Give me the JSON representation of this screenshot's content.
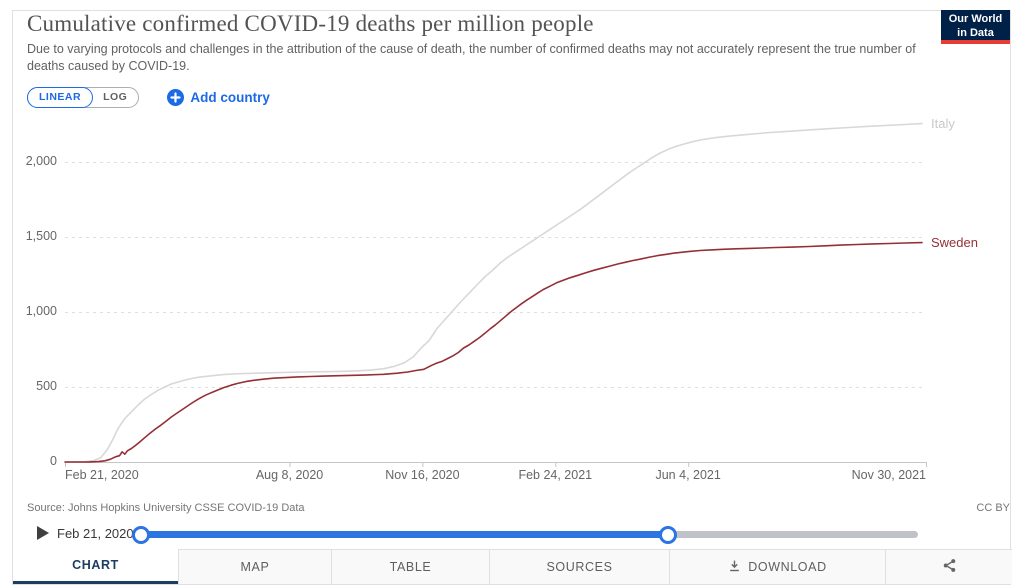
{
  "header": {
    "title": "Cumulative confirmed COVID-19 deaths per million people",
    "subtitle": "Due to varying protocols and challenges in the attribution of the cause of death, the number of confirmed deaths may not accurately represent the true number of deaths caused by COVID-19.",
    "logo": {
      "line1": "Our World",
      "line2": "in Data"
    }
  },
  "controls": {
    "scale_options": [
      {
        "label": "LINEAR",
        "active": true
      },
      {
        "label": "LOG",
        "active": false
      }
    ],
    "add_country_label": "Add country"
  },
  "chart_data": {
    "type": "line",
    "title": "Cumulative confirmed COVID-19 deaths per million people",
    "x_axis": {
      "unit": "date",
      "range": [
        "Feb 21, 2020",
        "Nov 30, 2021"
      ],
      "range_days": [
        0,
        648
      ],
      "ticks": [
        {
          "label": "Feb 21, 2020",
          "day": 0,
          "align": "left"
        },
        {
          "label": "Aug 8, 2020",
          "day": 169,
          "align": "center"
        },
        {
          "label": "Nov 16, 2020",
          "day": 269,
          "align": "center"
        },
        {
          "label": "Feb 24, 2021",
          "day": 369,
          "align": "center"
        },
        {
          "label": "Jun 4, 2021",
          "day": 469,
          "align": "center"
        },
        {
          "label": "Nov 30, 2021",
          "day": 648,
          "align": "right"
        }
      ]
    },
    "y_axis": {
      "range": [
        0,
        2300
      ],
      "grid": "dashed",
      "ticks": [
        {
          "value": 0,
          "label": "0"
        },
        {
          "value": 500,
          "label": "500"
        },
        {
          "value": 1000,
          "label": "1,000"
        },
        {
          "value": 1500,
          "label": "1,500"
        },
        {
          "value": 2000,
          "label": "2,000"
        }
      ]
    },
    "legend_position": "end-of-line",
    "series": [
      {
        "name": "Italy",
        "color": "#d8d8d8",
        "label_color": "#c9c9c9",
        "points": [
          [
            0,
            0
          ],
          [
            15,
            2
          ],
          [
            22,
            10
          ],
          [
            27,
            30
          ],
          [
            32,
            85
          ],
          [
            36,
            150
          ],
          [
            40,
            225
          ],
          [
            45,
            290
          ],
          [
            50,
            335
          ],
          [
            55,
            380
          ],
          [
            60,
            420
          ],
          [
            65,
            450
          ],
          [
            70,
            478
          ],
          [
            75,
            500
          ],
          [
            80,
            520
          ],
          [
            85,
            533
          ],
          [
            90,
            546
          ],
          [
            95,
            556
          ],
          [
            100,
            565
          ],
          [
            110,
            575
          ],
          [
            120,
            584
          ],
          [
            135,
            590
          ],
          [
            150,
            594
          ],
          [
            165,
            597
          ],
          [
            180,
            600
          ],
          [
            195,
            602
          ],
          [
            210,
            605
          ],
          [
            220,
            608
          ],
          [
            230,
            613
          ],
          [
            240,
            622
          ],
          [
            248,
            638
          ],
          [
            255,
            660
          ],
          [
            262,
            700
          ],
          [
            268,
            760
          ],
          [
            274,
            810
          ],
          [
            280,
            890
          ],
          [
            286,
            950
          ],
          [
            292,
            1010
          ],
          [
            298,
            1070
          ],
          [
            304,
            1125
          ],
          [
            310,
            1180
          ],
          [
            316,
            1235
          ],
          [
            322,
            1280
          ],
          [
            328,
            1330
          ],
          [
            334,
            1370
          ],
          [
            340,
            1405
          ],
          [
            346,
            1440
          ],
          [
            352,
            1475
          ],
          [
            358,
            1510
          ],
          [
            364,
            1545
          ],
          [
            370,
            1580
          ],
          [
            376,
            1615
          ],
          [
            382,
            1650
          ],
          [
            388,
            1685
          ],
          [
            394,
            1725
          ],
          [
            400,
            1765
          ],
          [
            406,
            1805
          ],
          [
            412,
            1845
          ],
          [
            418,
            1885
          ],
          [
            424,
            1925
          ],
          [
            430,
            1960
          ],
          [
            436,
            1995
          ],
          [
            442,
            2030
          ],
          [
            448,
            2060
          ],
          [
            454,
            2085
          ],
          [
            460,
            2105
          ],
          [
            466,
            2120
          ],
          [
            472,
            2135
          ],
          [
            480,
            2150
          ],
          [
            490,
            2163
          ],
          [
            500,
            2173
          ],
          [
            515,
            2185
          ],
          [
            530,
            2196
          ],
          [
            545,
            2205
          ],
          [
            560,
            2214
          ],
          [
            575,
            2222
          ],
          [
            590,
            2230
          ],
          [
            605,
            2238
          ],
          [
            620,
            2245
          ],
          [
            632,
            2250
          ],
          [
            645,
            2256
          ]
        ]
      },
      {
        "name": "Sweden",
        "color": "#942f36",
        "label_color": "#942f36",
        "points": [
          [
            0,
            0
          ],
          [
            18,
            1
          ],
          [
            25,
            3
          ],
          [
            30,
            8
          ],
          [
            34,
            18
          ],
          [
            38,
            35
          ],
          [
            41,
            42
          ],
          [
            43,
            68
          ],
          [
            45,
            52
          ],
          [
            47,
            75
          ],
          [
            50,
            90
          ],
          [
            53,
            110
          ],
          [
            56,
            132
          ],
          [
            60,
            162
          ],
          [
            64,
            192
          ],
          [
            68,
            220
          ],
          [
            72,
            245
          ],
          [
            76,
            272
          ],
          [
            80,
            300
          ],
          [
            85,
            330
          ],
          [
            90,
            360
          ],
          [
            95,
            390
          ],
          [
            100,
            418
          ],
          [
            105,
            442
          ],
          [
            110,
            462
          ],
          [
            115,
            480
          ],
          [
            120,
            497
          ],
          [
            125,
            512
          ],
          [
            130,
            524
          ],
          [
            136,
            536
          ],
          [
            142,
            545
          ],
          [
            150,
            553
          ],
          [
            158,
            559
          ],
          [
            166,
            563
          ],
          [
            175,
            567
          ],
          [
            185,
            570
          ],
          [
            195,
            573
          ],
          [
            210,
            576
          ],
          [
            225,
            579
          ],
          [
            240,
            585
          ],
          [
            250,
            592
          ],
          [
            258,
            600
          ],
          [
            264,
            610
          ],
          [
            270,
            618
          ],
          [
            276,
            645
          ],
          [
            280,
            660
          ],
          [
            284,
            672
          ],
          [
            288,
            690
          ],
          [
            292,
            708
          ],
          [
            296,
            730
          ],
          [
            300,
            760
          ],
          [
            304,
            780
          ],
          [
            308,
            805
          ],
          [
            312,
            830
          ],
          [
            316,
            858
          ],
          [
            320,
            888
          ],
          [
            324,
            915
          ],
          [
            328,
            945
          ],
          [
            332,
            975
          ],
          [
            336,
            1005
          ],
          [
            340,
            1032
          ],
          [
            344,
            1058
          ],
          [
            348,
            1082
          ],
          [
            352,
            1105
          ],
          [
            356,
            1128
          ],
          [
            360,
            1150
          ],
          [
            365,
            1172
          ],
          [
            370,
            1195
          ],
          [
            375,
            1212
          ],
          [
            380,
            1228
          ],
          [
            386,
            1245
          ],
          [
            392,
            1262
          ],
          [
            398,
            1278
          ],
          [
            404,
            1292
          ],
          [
            410,
            1306
          ],
          [
            416,
            1320
          ],
          [
            422,
            1332
          ],
          [
            428,
            1344
          ],
          [
            434,
            1355
          ],
          [
            440,
            1366
          ],
          [
            446,
            1376
          ],
          [
            452,
            1384
          ],
          [
            458,
            1392
          ],
          [
            464,
            1398
          ],
          [
            470,
            1404
          ],
          [
            478,
            1410
          ],
          [
            486,
            1414
          ],
          [
            495,
            1418
          ],
          [
            505,
            1421
          ],
          [
            515,
            1424
          ],
          [
            525,
            1427
          ],
          [
            535,
            1430
          ],
          [
            548,
            1433
          ],
          [
            560,
            1437
          ],
          [
            572,
            1441
          ],
          [
            584,
            1446
          ],
          [
            596,
            1450
          ],
          [
            608,
            1454
          ],
          [
            620,
            1457
          ],
          [
            632,
            1460
          ],
          [
            645,
            1463
          ]
        ]
      }
    ]
  },
  "footer": {
    "source": "Source: Johns Hopkins University CSSE COVID-19 Data",
    "license": "CC BY"
  },
  "timeline": {
    "current_date_label": "Feb 21, 2020",
    "range_fraction": [
      0,
      0.678
    ]
  },
  "tabs": [
    {
      "label": "CHART",
      "active": true
    },
    {
      "label": "MAP",
      "active": false
    },
    {
      "label": "TABLE",
      "active": false
    },
    {
      "label": "SOURCES",
      "active": false
    },
    {
      "label": "DOWNLOAD",
      "active": false,
      "icon": "download-icon"
    },
    {
      "label": "",
      "active": false,
      "icon": "share-icon"
    }
  ],
  "colors": {
    "accent_blue": "#1d6ae5",
    "slider_blue": "#2b74e2",
    "tab_navy": "#1d3d63",
    "logo_navy": "#002147",
    "logo_red": "#e63e36",
    "grid_gray": "#dedede",
    "axis_gray": "#c6c6c6"
  }
}
